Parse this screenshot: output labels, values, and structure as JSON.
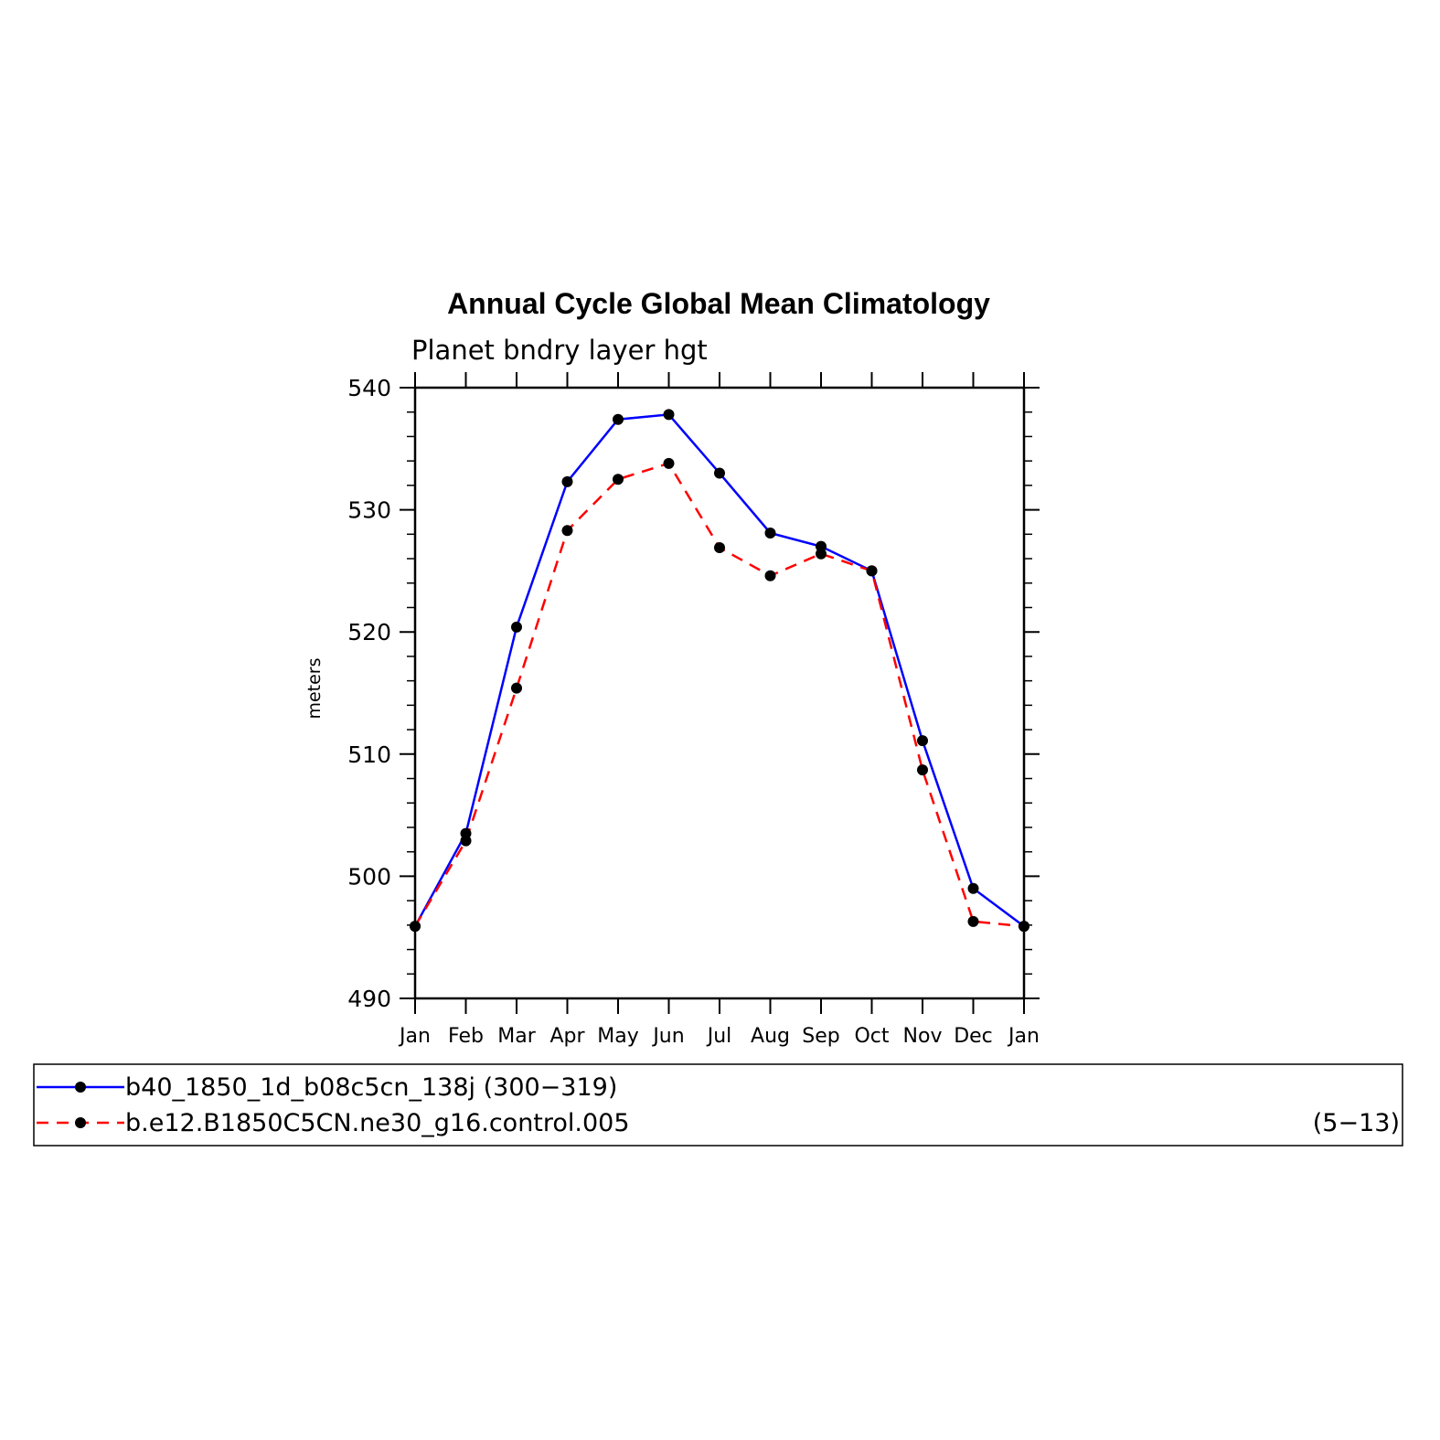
{
  "chart_data": {
    "type": "line",
    "title": "Annual Cycle Global Mean Climatology",
    "subtitle": "Planet bndry layer hgt",
    "ylabel": "meters",
    "xlabel": "",
    "categories": [
      "Jan",
      "Feb",
      "Mar",
      "Apr",
      "May",
      "Jun",
      "Jul",
      "Aug",
      "Sep",
      "Oct",
      "Nov",
      "Dec",
      "Jan"
    ],
    "ylim": [
      490,
      540
    ],
    "yticks": [
      "490",
      "500",
      "510",
      "520",
      "530",
      "540"
    ],
    "series": [
      {
        "name": "b40_1850_1d_b08c5cn_138j (300-319)",
        "color": "#0000ff",
        "style": "solid",
        "values": [
          495.9,
          503.5,
          520.4,
          532.3,
          537.4,
          537.8,
          533.0,
          528.1,
          527.0,
          525.0,
          511.1,
          499.0,
          495.9
        ]
      },
      {
        "name": "b.e12.B1850C5CN.ne30_g16.control.005",
        "color": "#ff0000",
        "style": "dashed",
        "values": [
          495.9,
          502.9,
          515.4,
          528.3,
          532.5,
          533.8,
          526.9,
          524.6,
          526.4,
          525.0,
          508.7,
          496.3,
          495.9
        ]
      }
    ],
    "legend": {
      "placement": "bottom",
      "entries": [
        {
          "label": "b40_1850_1d_b08c5cn_138j (300−319)",
          "suffix": ""
        },
        {
          "label": "b.e12.B1850C5CN.ne30_g16.control.005",
          "suffix": "(5−13)"
        }
      ]
    },
    "grid": false
  }
}
